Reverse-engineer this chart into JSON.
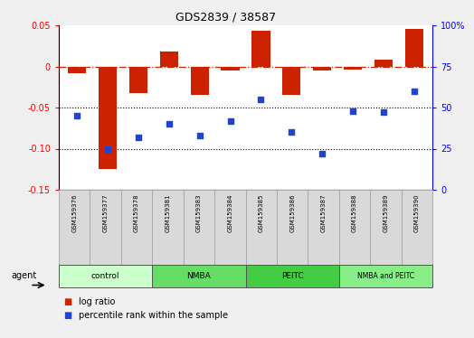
{
  "title": "GDS2839 / 38587",
  "samples": [
    "GSM159376",
    "GSM159377",
    "GSM159378",
    "GSM159381",
    "GSM159383",
    "GSM159384",
    "GSM159385",
    "GSM159386",
    "GSM159387",
    "GSM159388",
    "GSM159389",
    "GSM159390"
  ],
  "log_ratio": [
    -0.008,
    -0.125,
    -0.032,
    0.018,
    -0.035,
    -0.005,
    0.043,
    -0.035,
    -0.005,
    -0.004,
    0.008,
    0.046
  ],
  "percentile_rank": [
    45,
    25,
    32,
    40,
    33,
    42,
    55,
    35,
    22,
    48,
    47,
    60
  ],
  "groups": [
    {
      "label": "control",
      "start": 0,
      "end": 3,
      "color": "#ccffcc"
    },
    {
      "label": "NMBA",
      "start": 3,
      "end": 6,
      "color": "#66dd66"
    },
    {
      "label": "PEITC",
      "start": 6,
      "end": 9,
      "color": "#44cc44"
    },
    {
      "label": "NMBA and PEITC",
      "start": 9,
      "end": 12,
      "color": "#88ee88"
    }
  ],
  "ylim_left": [
    -0.15,
    0.05
  ],
  "ylim_right": [
    0,
    100
  ],
  "yticks_left": [
    -0.15,
    -0.1,
    -0.05,
    0.0,
    0.05
  ],
  "yticks_right": [
    0,
    25,
    50,
    75,
    100
  ],
  "bar_color": "#cc2200",
  "dot_color": "#2244cc",
  "hline_color": "#cc2200",
  "dotted_line_color": "#555555",
  "bg_color": "#f0f0f0",
  "plot_bg": "#ffffff",
  "legend_items": [
    "log ratio",
    "percentile rank within the sample"
  ],
  "agent_label": "agent"
}
